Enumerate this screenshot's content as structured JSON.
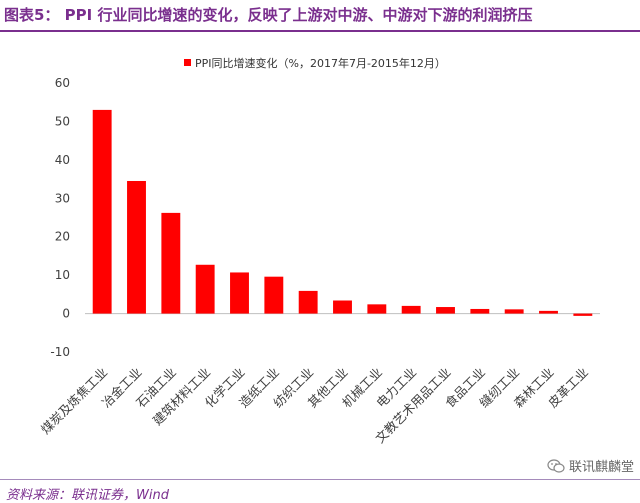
{
  "header": {
    "title": "图表5：   PPI 行业同比增速的变化，反映了上游对中游、中游对下游的利润挤压"
  },
  "footer": {
    "source": "资料来源：联讯证券，Wind"
  },
  "watermark": {
    "text": "联讯麒麟堂",
    "icon": "wechat-icon"
  },
  "colors": {
    "title": "#7a2f8e",
    "bar": "#ff0000",
    "axis": "#bfbfbf"
  },
  "chart_data": {
    "type": "bar",
    "categories": [
      "煤炭及炼焦工业",
      "冶金工业",
      "石油工业",
      "建筑材料工业",
      "化学工业",
      "造纸工业",
      "纺织工业",
      "其他工业",
      "机械工业",
      "电力工业",
      "文教艺术用品工业",
      "食品工业",
      "缝纫工业",
      "森林工业",
      "皮革工业"
    ],
    "series": [
      {
        "name": "PPI同比增速变化（%，2017年7月-2015年12月）",
        "values": [
          53.0,
          34.5,
          26.2,
          12.7,
          10.7,
          9.6,
          5.9,
          3.4,
          2.4,
          2.0,
          1.7,
          1.2,
          1.1,
          0.7,
          -0.6
        ]
      }
    ],
    "ylim": [
      -10,
      60
    ],
    "yticks": [
      -10,
      0,
      10,
      20,
      30,
      40,
      50,
      60
    ],
    "grid": false,
    "legend": "top-center"
  }
}
